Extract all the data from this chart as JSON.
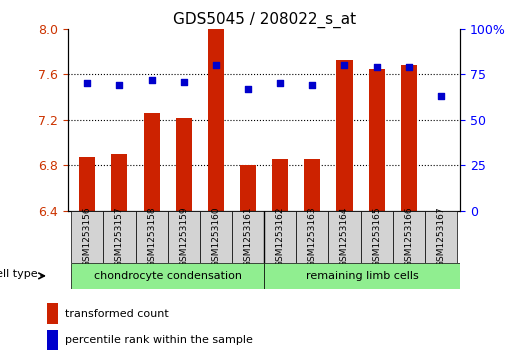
{
  "title": "GDS5045 / 208022_s_at",
  "samples": [
    "GSM1253156",
    "GSM1253157",
    "GSM1253158",
    "GSM1253159",
    "GSM1253160",
    "GSM1253161",
    "GSM1253162",
    "GSM1253163",
    "GSM1253164",
    "GSM1253165",
    "GSM1253166",
    "GSM1253167"
  ],
  "transformed_count": [
    6.87,
    6.9,
    7.26,
    7.22,
    8.0,
    6.8,
    6.85,
    6.85,
    7.73,
    7.65,
    7.68,
    6.4
  ],
  "percentile_rank": [
    70,
    69,
    72,
    71,
    80,
    67,
    70,
    69,
    80,
    79,
    79,
    63
  ],
  "cell_type_groups": [
    {
      "label": "chondrocyte condensation",
      "start": 0,
      "end": 5,
      "color": "#90ee90"
    },
    {
      "label": "remaining limb cells",
      "start": 6,
      "end": 11,
      "color": "#90ee90"
    }
  ],
  "group_boundary": 5.5,
  "ylim_left": [
    6.4,
    8.0
  ],
  "ylim_right": [
    0,
    100
  ],
  "yticks_left": [
    6.4,
    6.8,
    7.2,
    7.6,
    8.0
  ],
  "yticks_right": [
    0,
    25,
    50,
    75,
    100
  ],
  "bar_color": "#cc2200",
  "dot_color": "#0000cc",
  "bar_width": 0.5,
  "grid_color": "black",
  "grid_linewidth": 0.8,
  "legend_items": [
    "transformed count",
    "percentile rank within the sample"
  ],
  "cell_type_label": "cell type",
  "sample_box_color": "#d3d3d3",
  "group_box_color": "#90ee90"
}
